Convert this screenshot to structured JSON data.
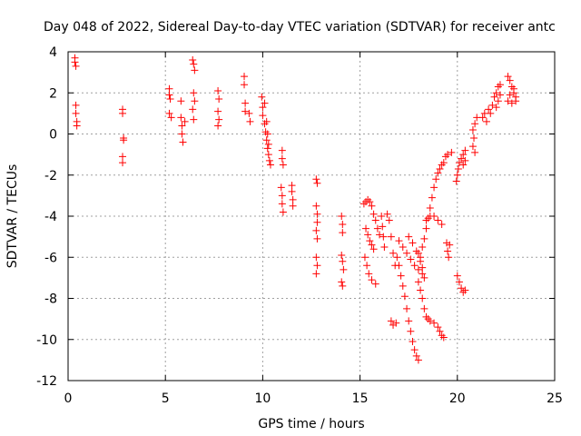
{
  "chart_data": {
    "type": "scatter",
    "title": "Day 048 of 2022, Sidereal Day-to-day VTEC variation (SDTVAR) for receiver antc",
    "xlabel": "GPS time / hours",
    "ylabel": "SDTVAR / TECUs",
    "xlim": [
      0,
      25
    ],
    "ylim": [
      -12,
      4
    ],
    "x_ticks": [
      0,
      5,
      10,
      15,
      20,
      25
    ],
    "y_ticks": [
      -12,
      -10,
      -8,
      -6,
      -4,
      -2,
      0,
      2,
      4
    ],
    "grid": true,
    "marker": "+",
    "series": [
      {
        "name": "SDTVAR",
        "color": "#ff0000",
        "points": [
          [
            0.35,
            3.7
          ],
          [
            0.35,
            3.5
          ],
          [
            0.4,
            3.3
          ],
          [
            0.4,
            1.4
          ],
          [
            0.4,
            1.0
          ],
          [
            0.45,
            0.6
          ],
          [
            0.45,
            0.4
          ],
          [
            2.8,
            1.2
          ],
          [
            2.8,
            1.0
          ],
          [
            2.85,
            -0.2
          ],
          [
            2.85,
            -0.3
          ],
          [
            2.8,
            -1.1
          ],
          [
            2.8,
            -1.4
          ],
          [
            5.2,
            2.2
          ],
          [
            5.2,
            1.9
          ],
          [
            5.25,
            1.7
          ],
          [
            5.2,
            1.0
          ],
          [
            5.3,
            0.8
          ],
          [
            5.8,
            1.6
          ],
          [
            5.8,
            0.8
          ],
          [
            5.85,
            0.4
          ],
          [
            5.85,
            0.0
          ],
          [
            5.9,
            -0.4
          ],
          [
            6.0,
            0.6
          ],
          [
            6.4,
            3.6
          ],
          [
            6.45,
            3.4
          ],
          [
            6.5,
            3.1
          ],
          [
            6.45,
            2.0
          ],
          [
            6.5,
            1.6
          ],
          [
            6.4,
            1.2
          ],
          [
            6.45,
            0.7
          ],
          [
            7.7,
            2.1
          ],
          [
            7.75,
            1.7
          ],
          [
            7.7,
            1.1
          ],
          [
            7.75,
            0.7
          ],
          [
            7.7,
            0.4
          ],
          [
            9.05,
            2.8
          ],
          [
            9.05,
            2.4
          ],
          [
            9.1,
            1.5
          ],
          [
            9.1,
            1.1
          ],
          [
            9.3,
            1.0
          ],
          [
            9.35,
            0.6
          ],
          [
            9.95,
            1.8
          ],
          [
            10.0,
            1.3
          ],
          [
            10.0,
            0.9
          ],
          [
            10.1,
            0.5
          ],
          [
            10.15,
            0.1
          ],
          [
            10.2,
            -0.3
          ],
          [
            10.25,
            -0.7
          ],
          [
            10.3,
            -1.0
          ],
          [
            10.35,
            -1.3
          ],
          [
            10.4,
            -1.5
          ],
          [
            10.1,
            1.5
          ],
          [
            10.2,
            0.6
          ],
          [
            10.25,
            0.0
          ],
          [
            10.3,
            -0.5
          ],
          [
            11.0,
            -0.8
          ],
          [
            11.0,
            -1.2
          ],
          [
            11.05,
            -1.5
          ],
          [
            10.95,
            -2.6
          ],
          [
            11.0,
            -3.0
          ],
          [
            11.0,
            -3.4
          ],
          [
            11.05,
            -3.8
          ],
          [
            11.5,
            -2.5
          ],
          [
            11.5,
            -2.8
          ],
          [
            11.55,
            -3.2
          ],
          [
            11.55,
            -3.5
          ],
          [
            12.75,
            -2.2
          ],
          [
            12.8,
            -2.4
          ],
          [
            12.75,
            -3.5
          ],
          [
            12.8,
            -3.9
          ],
          [
            12.8,
            -4.3
          ],
          [
            12.75,
            -4.7
          ],
          [
            12.8,
            -5.1
          ],
          [
            12.75,
            -6.0
          ],
          [
            12.8,
            -6.4
          ],
          [
            12.75,
            -6.8
          ],
          [
            14.05,
            -4.0
          ],
          [
            14.1,
            -4.4
          ],
          [
            14.1,
            -4.8
          ],
          [
            14.05,
            -5.9
          ],
          [
            14.1,
            -6.2
          ],
          [
            14.15,
            -6.6
          ],
          [
            14.05,
            -7.2
          ],
          [
            14.1,
            -7.4
          ],
          [
            15.2,
            -3.4
          ],
          [
            15.3,
            -3.3
          ],
          [
            15.4,
            -3.2
          ],
          [
            15.5,
            -3.3
          ],
          [
            15.6,
            -3.5
          ],
          [
            15.3,
            -4.6
          ],
          [
            15.4,
            -4.9
          ],
          [
            15.5,
            -5.2
          ],
          [
            15.6,
            -5.4
          ],
          [
            15.7,
            -5.6
          ],
          [
            15.25,
            -6.0
          ],
          [
            15.35,
            -6.4
          ],
          [
            15.45,
            -6.8
          ],
          [
            15.6,
            -7.1
          ],
          [
            15.8,
            -7.3
          ],
          [
            15.7,
            -3.9
          ],
          [
            15.8,
            -4.2
          ],
          [
            15.9,
            -4.6
          ],
          [
            16.0,
            -4.9
          ],
          [
            16.1,
            -4.0
          ],
          [
            16.15,
            -4.5
          ],
          [
            16.2,
            -5.0
          ],
          [
            16.25,
            -5.5
          ],
          [
            16.4,
            -3.9
          ],
          [
            16.5,
            -4.2
          ],
          [
            16.6,
            -5.0
          ],
          [
            16.7,
            -5.8
          ],
          [
            16.8,
            -6.4
          ],
          [
            16.6,
            -9.1
          ],
          [
            16.7,
            -9.3
          ],
          [
            16.85,
            -9.2
          ],
          [
            16.9,
            -6.0
          ],
          [
            17.0,
            -6.4
          ],
          [
            17.1,
            -6.9
          ],
          [
            17.2,
            -7.4
          ],
          [
            17.3,
            -7.9
          ],
          [
            17.4,
            -8.5
          ],
          [
            17.5,
            -9.1
          ],
          [
            17.6,
            -9.6
          ],
          [
            17.7,
            -10.1
          ],
          [
            17.8,
            -10.5
          ],
          [
            17.9,
            -10.8
          ],
          [
            18.0,
            -11.0
          ],
          [
            17.0,
            -5.2
          ],
          [
            17.2,
            -5.5
          ],
          [
            17.4,
            -5.8
          ],
          [
            17.6,
            -6.1
          ],
          [
            17.8,
            -6.4
          ],
          [
            18.0,
            -6.6
          ],
          [
            18.2,
            -6.8
          ],
          [
            18.3,
            -7.0
          ],
          [
            17.5,
            -5.0
          ],
          [
            17.7,
            -5.3
          ],
          [
            17.9,
            -5.7
          ],
          [
            18.1,
            -6.0
          ],
          [
            18.0,
            -5.8
          ],
          [
            18.1,
            -6.2
          ],
          [
            18.2,
            -6.5
          ],
          [
            18.0,
            -7.2
          ],
          [
            18.1,
            -7.6
          ],
          [
            18.2,
            -8.0
          ],
          [
            18.3,
            -8.5
          ],
          [
            18.4,
            -8.9
          ],
          [
            18.5,
            -9.0
          ],
          [
            18.6,
            -9.1
          ],
          [
            18.8,
            -9.2
          ],
          [
            19.0,
            -9.4
          ],
          [
            19.1,
            -9.6
          ],
          [
            19.2,
            -9.8
          ],
          [
            19.3,
            -9.9
          ],
          [
            18.2,
            -5.5
          ],
          [
            18.3,
            -5.1
          ],
          [
            18.4,
            -4.6
          ],
          [
            18.5,
            -4.1
          ],
          [
            18.6,
            -3.6
          ],
          [
            18.7,
            -3.1
          ],
          [
            18.8,
            -2.6
          ],
          [
            18.9,
            -2.2
          ],
          [
            19.0,
            -1.9
          ],
          [
            19.1,
            -1.7
          ],
          [
            19.2,
            -1.5
          ],
          [
            19.3,
            -1.4
          ],
          [
            18.4,
            -4.2
          ],
          [
            18.6,
            -4.0
          ],
          [
            18.8,
            -4.0
          ],
          [
            19.0,
            -4.2
          ],
          [
            19.2,
            -4.4
          ],
          [
            19.45,
            -5.3
          ],
          [
            19.5,
            -5.7
          ],
          [
            19.55,
            -6.0
          ],
          [
            19.6,
            -5.4
          ],
          [
            19.4,
            -1.1
          ],
          [
            19.5,
            -1.0
          ],
          [
            19.7,
            -0.9
          ],
          [
            19.95,
            -2.3
          ],
          [
            20.0,
            -2.0
          ],
          [
            20.05,
            -1.7
          ],
          [
            20.1,
            -1.4
          ],
          [
            20.2,
            -1.2
          ],
          [
            20.3,
            -1.0
          ],
          [
            20.4,
            -0.8
          ],
          [
            20.3,
            -1.5
          ],
          [
            20.4,
            -1.3
          ],
          [
            20.0,
            -6.9
          ],
          [
            20.1,
            -7.2
          ],
          [
            20.2,
            -7.5
          ],
          [
            20.3,
            -7.7
          ],
          [
            20.4,
            -7.6
          ],
          [
            20.8,
            0.2
          ],
          [
            20.9,
            0.5
          ],
          [
            21.0,
            0.8
          ],
          [
            20.85,
            -0.2
          ],
          [
            20.8,
            -0.6
          ],
          [
            20.9,
            -0.9
          ],
          [
            21.3,
            0.8
          ],
          [
            21.4,
            1.0
          ],
          [
            21.5,
            0.6
          ],
          [
            21.6,
            1.2
          ],
          [
            21.7,
            1.0
          ],
          [
            21.8,
            1.4
          ],
          [
            21.9,
            1.8
          ],
          [
            22.0,
            2.0
          ],
          [
            22.1,
            2.3
          ],
          [
            22.2,
            2.4
          ],
          [
            22.0,
            1.3
          ],
          [
            22.1,
            1.6
          ],
          [
            22.2,
            1.9
          ],
          [
            22.6,
            2.8
          ],
          [
            22.7,
            2.6
          ],
          [
            22.8,
            2.3
          ],
          [
            22.9,
            2.0
          ],
          [
            23.0,
            1.8
          ],
          [
            22.6,
            1.6
          ],
          [
            22.7,
            1.9
          ],
          [
            22.8,
            1.5
          ],
          [
            22.9,
            2.2
          ],
          [
            23.0,
            1.6
          ]
        ]
      }
    ]
  }
}
